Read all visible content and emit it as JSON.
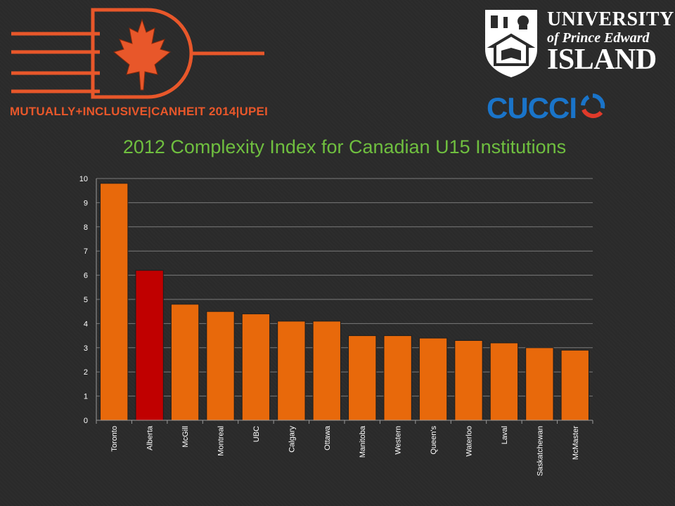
{
  "header": {
    "conference_caption": "MUTUALLY+INCLUSIVE|CANHEIT 2014|UPEI",
    "university_line1": "UNIVERSITY",
    "university_line2": "of Prince Edward",
    "university_line3": "ISLAND",
    "partner_logo_text": "CUCCI"
  },
  "colors": {
    "bar": "#e8690b",
    "bar_highlight": "#c00000",
    "title": "#6fbf3f",
    "accent": "#e8572a",
    "partner_blue": "#1a74c9"
  },
  "chart_data": {
    "type": "bar",
    "title": "2012 Complexity Index for Canadian U15 Institutions",
    "categories": [
      "Toronto",
      "Alberta",
      "McGill",
      "Montreal",
      "UBC",
      "Calgary",
      "Ottawa",
      "Manitoba",
      "Western",
      "Queen's",
      "Waterloo",
      "Laval",
      "Saskatchewan",
      "McMaster"
    ],
    "values": [
      9.8,
      6.2,
      4.8,
      4.5,
      4.4,
      4.1,
      4.1,
      3.5,
      3.5,
      3.4,
      3.3,
      3.2,
      3.0,
      2.9
    ],
    "highlight": "Alberta",
    "ylim": [
      0,
      10
    ],
    "yticks": [
      0,
      1,
      2,
      3,
      4,
      5,
      6,
      7,
      8,
      9,
      10
    ],
    "xlabel": "",
    "ylabel": "",
    "grid": true,
    "legend": "none"
  }
}
